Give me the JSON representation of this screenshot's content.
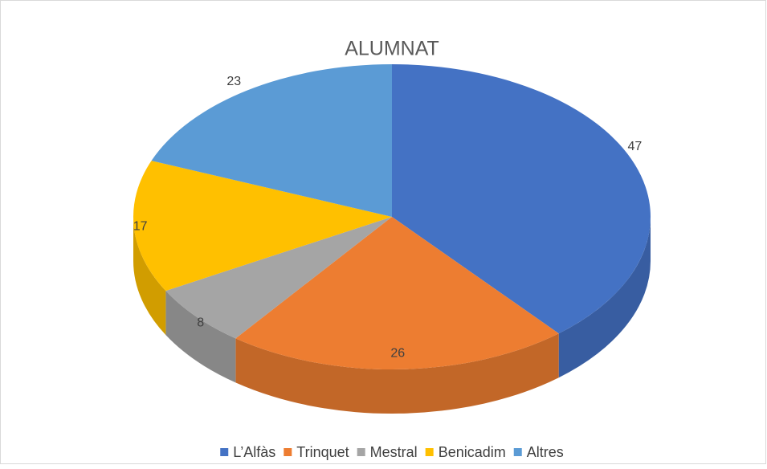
{
  "chart_data": {
    "type": "pie",
    "title": "ALUMNAT",
    "categories": [
      "L’Alfàs",
      "Trinquet",
      "Mestral",
      "Benicadim",
      "Altres"
    ],
    "values": [
      47,
      26,
      8,
      17,
      23
    ],
    "colors": [
      "#4472c4",
      "#ed7d31",
      "#a5a5a5",
      "#ffc000",
      "#5b9bd5"
    ],
    "legend": "bottom"
  }
}
